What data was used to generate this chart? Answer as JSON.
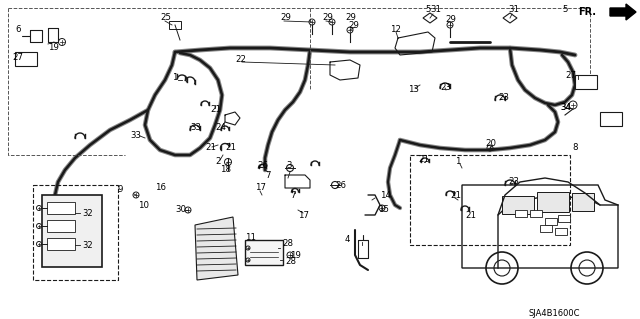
{
  "bg_color": "#ffffff",
  "line_color": "#1a1a1a",
  "diagram_code": "SJA4B1600C",
  "fig_w": 6.4,
  "fig_h": 3.19,
  "dpi": 100
}
